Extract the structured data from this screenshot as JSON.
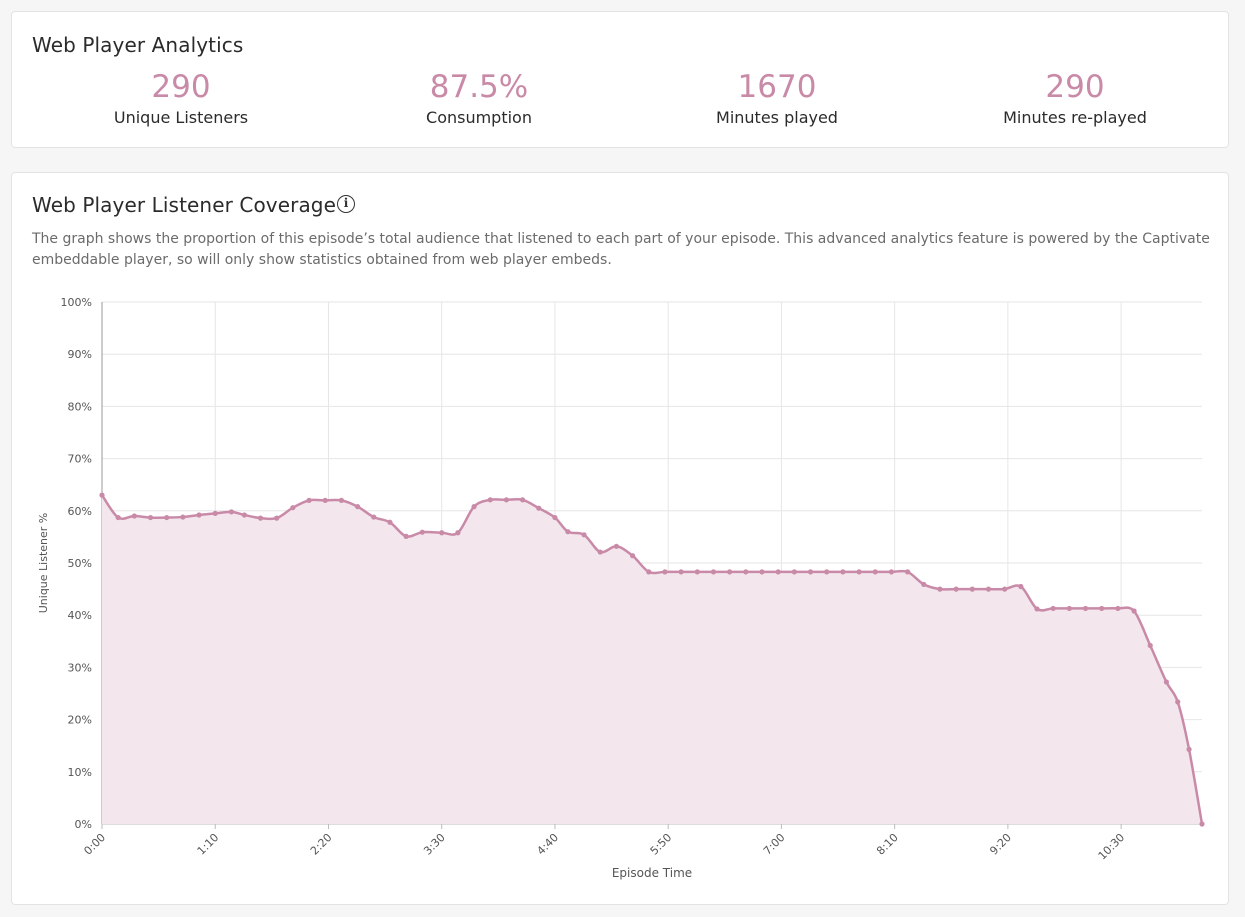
{
  "analytics": {
    "title": "Web Player Analytics",
    "stats": [
      {
        "value": "290",
        "label": "Unique Listeners"
      },
      {
        "value": "87.5%",
        "label": "Consumption"
      },
      {
        "value": "1670",
        "label": "Minutes played"
      },
      {
        "value": "290",
        "label": "Minutes re-played"
      }
    ]
  },
  "coverage": {
    "title": "Web Player Listener Coverage",
    "info_icon": "info-icon",
    "description": "The graph shows the proportion of this episode’s total audience that listened to each part of your episode. This advanced analytics feature is powered by the Captivate embeddable player, so will only show statistics obtained from web player embeds."
  },
  "colors": {
    "accent": "#c98aa8",
    "fill": "#f3e6ed"
  },
  "chart_data": {
    "type": "area",
    "xlabel": "Episode Time",
    "ylabel": "Unique Listener %",
    "ylim": [
      0,
      100
    ],
    "y_ticks": [
      "0%",
      "10%",
      "20%",
      "30%",
      "40%",
      "50%",
      "60%",
      "70%",
      "80%",
      "90%",
      "100%"
    ],
    "x_ticks": [
      "0:00",
      "1:10",
      "2:20",
      "3:30",
      "4:40",
      "5:50",
      "7:00",
      "8:10",
      "9:20",
      "10:30"
    ],
    "x_tick_seconds": [
      0,
      70,
      140,
      210,
      280,
      350,
      420,
      490,
      560,
      630
    ],
    "x_max_seconds": 680,
    "grid": true,
    "series": [
      {
        "x": [
          0,
          10,
          20,
          30,
          40,
          50,
          60,
          70,
          80,
          88,
          98,
          108,
          118,
          128,
          138,
          148,
          158,
          168,
          178,
          188,
          198,
          210,
          220,
          230,
          240,
          250,
          260,
          270,
          280,
          288,
          298,
          308,
          318,
          328,
          338,
          348,
          358,
          368,
          378,
          388,
          398,
          408,
          418,
          428,
          438,
          448,
          458,
          468,
          478,
          488,
          498,
          508,
          518,
          528,
          538,
          548,
          558,
          568,
          578,
          588,
          598,
          608,
          618,
          628,
          638,
          648,
          658,
          665,
          672,
          680
        ],
        "values": [
          63,
          58.7,
          59,
          58.7,
          58.7,
          58.8,
          59.2,
          59.5,
          59.8,
          59.2,
          58.6,
          58.6,
          60.6,
          62,
          62,
          62,
          60.8,
          58.8,
          57.8,
          55.1,
          55.9,
          55.8,
          55.8,
          60.8,
          62.1,
          62.1,
          62.1,
          60.5,
          58.7,
          56,
          55.4,
          52.1,
          53.2,
          51.4,
          48.3,
          48.3,
          48.3,
          48.3,
          48.3,
          48.3,
          48.3,
          48.3,
          48.3,
          48.3,
          48.3,
          48.3,
          48.3,
          48.3,
          48.3,
          48.3,
          48.3,
          45.9,
          45,
          45,
          45,
          45,
          45,
          45.5,
          41.2,
          41.3,
          41.3,
          41.3,
          41.3,
          41.3,
          40.8,
          34.2,
          27.2,
          23.4,
          14.3,
          0
        ]
      }
    ]
  }
}
